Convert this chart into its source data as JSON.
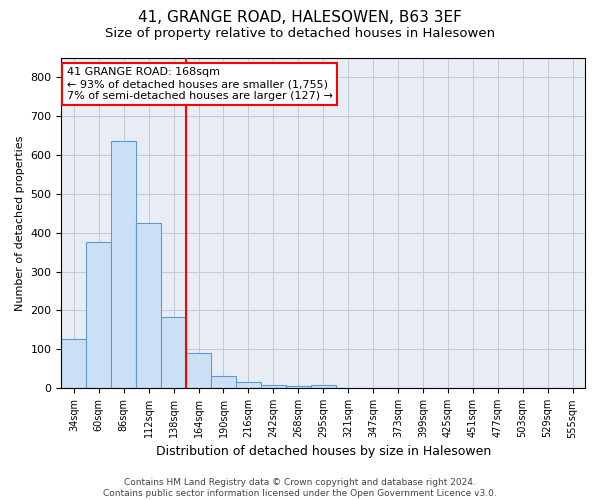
{
  "title1": "41, GRANGE ROAD, HALESOWEN, B63 3EF",
  "title2": "Size of property relative to detached houses in Halesowen",
  "xlabel": "Distribution of detached houses by size in Halesowen",
  "ylabel": "Number of detached properties",
  "bar_labels": [
    "34sqm",
    "60sqm",
    "86sqm",
    "112sqm",
    "138sqm",
    "164sqm",
    "190sqm",
    "216sqm",
    "242sqm",
    "268sqm",
    "295sqm",
    "321sqm",
    "347sqm",
    "373sqm",
    "399sqm",
    "425sqm",
    "451sqm",
    "477sqm",
    "503sqm",
    "529sqm",
    "555sqm"
  ],
  "bar_values": [
    127,
    375,
    635,
    425,
    183,
    90,
    32,
    15,
    8,
    6,
    8,
    0,
    0,
    0,
    0,
    0,
    0,
    0,
    0,
    0,
    0
  ],
  "bar_color": "#cce0f5",
  "bar_edge_color": "#5b9bd5",
  "annotation_text_line1": "41 GRANGE ROAD: 168sqm",
  "annotation_text_line2": "← 93% of detached houses are smaller (1,755)",
  "annotation_text_line3": "7% of semi-detached houses are larger (127) →",
  "annotation_box_color": "white",
  "annotation_box_edge_color": "red",
  "vline_color": "red",
  "vline_x_index": 4.5,
  "ylim": [
    0,
    850
  ],
  "yticks": [
    0,
    100,
    200,
    300,
    400,
    500,
    600,
    700,
    800
  ],
  "grid_color": "#c0c8d8",
  "background_color": "#e8edf5",
  "footer_text": "Contains HM Land Registry data © Crown copyright and database right 2024.\nContains public sector information licensed under the Open Government Licence v3.0.",
  "title1_fontsize": 11,
  "title2_fontsize": 9.5,
  "xlabel_fontsize": 9,
  "ylabel_fontsize": 8,
  "annotation_fontsize": 8,
  "footer_fontsize": 6.5
}
